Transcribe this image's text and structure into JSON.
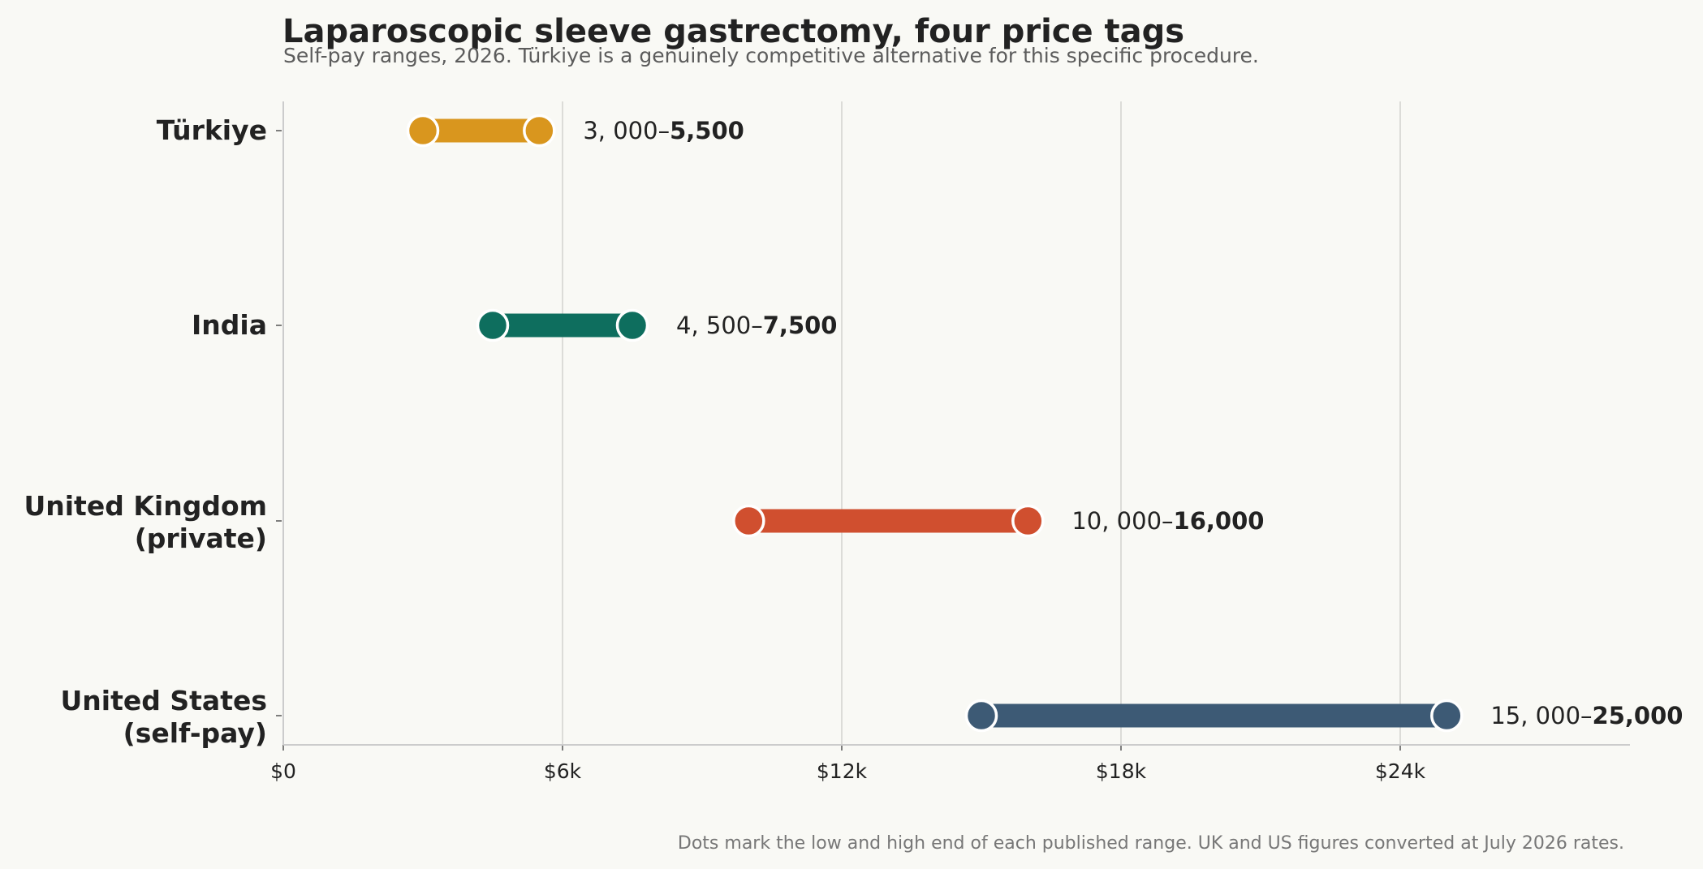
{
  "title": "Laparoscopic sleeve gastrectomy, four price tags",
  "subtitle": "Self-pay ranges, 2026. Türkiye is a genuinely competitive alternative for this specific procedure.",
  "footnote": "Dots mark the low and high end of each published range. UK and US figures converted at July 2026 rates.",
  "chart_data": {
    "type": "dumbbell",
    "title": "Laparoscopic sleeve gastrectomy, four price tags",
    "subtitle": "Self-pay ranges, 2026. Türkiye is a genuinely competitive alternative for this specific procedure.",
    "xlim": [
      0,
      29000
    ],
    "x_ticks": [
      0,
      6000,
      12000,
      18000,
      24000
    ],
    "x_tick_labels": [
      "$0",
      "$6k",
      "$12k",
      "$18k",
      "$24k"
    ],
    "grid": "vertical",
    "categories": [
      {
        "label_lines": [
          "Türkiye"
        ],
        "low": 3000,
        "high": 5500,
        "low_text": "3, 000–",
        "high_text": "5,500",
        "color": "#d9961e"
      },
      {
        "label_lines": [
          "India"
        ],
        "low": 4500,
        "high": 7500,
        "low_text": "4, 500–",
        "high_text": "7,500",
        "color": "#0e6e5e"
      },
      {
        "label_lines": [
          "United Kingdom",
          "(private)"
        ],
        "low": 10000,
        "high": 16000,
        "low_text": "10, 000–",
        "high_text": "16,000",
        "color": "#d04f2f"
      },
      {
        "label_lines": [
          "United States",
          "(self-pay)"
        ],
        "low": 15000,
        "high": 25000,
        "low_text": "15, 000–",
        "high_text": "25,000",
        "color": "#3d5a75"
      }
    ]
  },
  "colors": {
    "background": "#f9f9f5",
    "grid": "#dcdcd8",
    "axis": "#cccccc",
    "text": "#222222"
  }
}
